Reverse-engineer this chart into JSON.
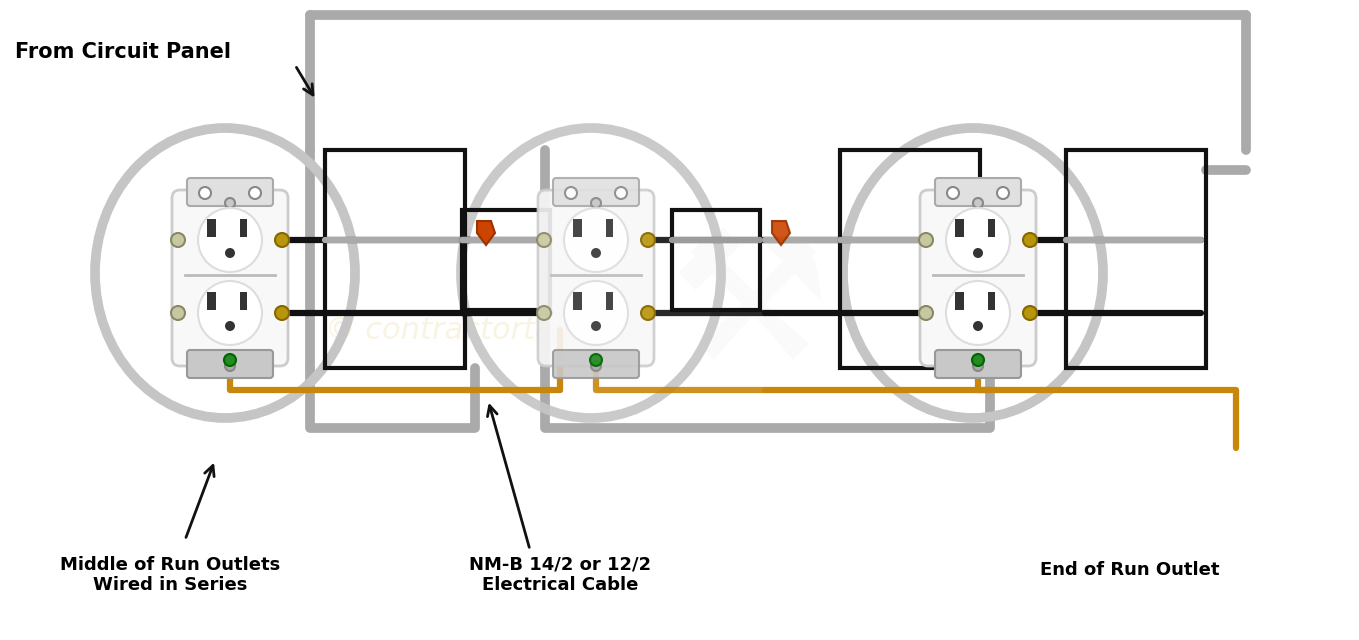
{
  "bg_color": "#ffffff",
  "title_text": "From Circuit Panel",
  "label1": "Middle of Run Outlets\nWired in Series",
  "label2": "NM-B 14/2 or 12/2\nElectrical Cable",
  "label3": "End of Run Outlet",
  "wire_black": "#111111",
  "wire_gray": "#aaaaaa",
  "wire_gold": "#c8860a",
  "wire_red": "#cc3300",
  "box_color": "#111111",
  "font_size_label": 13,
  "font_size_title": 15,
  "watermark_color": "#e8d090",
  "watermark_alpha": 0.25
}
